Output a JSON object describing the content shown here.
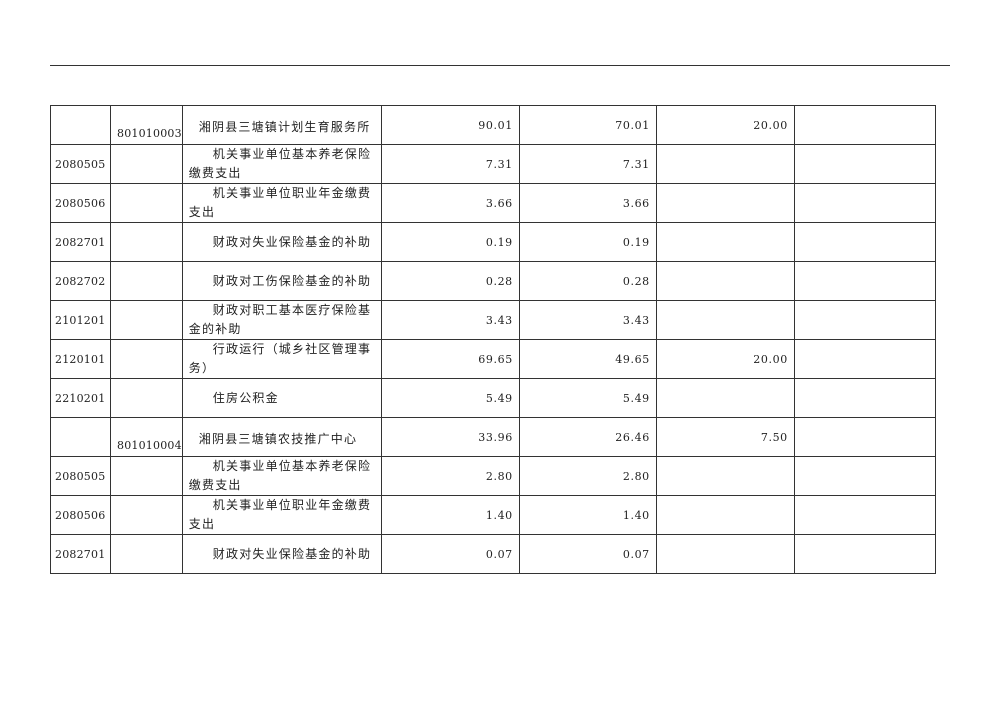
{
  "rows": [
    {
      "code": "",
      "unit": "801010003",
      "name": "湘阴县三塘镇计划生育服务所",
      "total": "90.01",
      "c2": "70.01",
      "c3": "20.00",
      "c4": "",
      "type": "unit"
    },
    {
      "code": "2080505",
      "unit": "",
      "name": "机关事业单位基本养老保险缴费支出",
      "total": "7.31",
      "c2": "7.31",
      "c3": "",
      "c4": "",
      "type": "sub"
    },
    {
      "code": "2080506",
      "unit": "",
      "name": "机关事业单位职业年金缴费支出",
      "total": "3.66",
      "c2": "3.66",
      "c3": "",
      "c4": "",
      "type": "sub"
    },
    {
      "code": "2082701",
      "unit": "",
      "name": "财政对失业保险基金的补助",
      "total": "0.19",
      "c2": "0.19",
      "c3": "",
      "c4": "",
      "type": "sub"
    },
    {
      "code": "2082702",
      "unit": "",
      "name": "财政对工伤保险基金的补助",
      "total": "0.28",
      "c2": "0.28",
      "c3": "",
      "c4": "",
      "type": "sub"
    },
    {
      "code": "2101201",
      "unit": "",
      "name": "财政对职工基本医疗保险基金的补助",
      "total": "3.43",
      "c2": "3.43",
      "c3": "",
      "c4": "",
      "type": "sub"
    },
    {
      "code": "2120101",
      "unit": "",
      "name": "行政运行（城乡社区管理事务）",
      "total": "69.65",
      "c2": "49.65",
      "c3": "20.00",
      "c4": "",
      "type": "sub"
    },
    {
      "code": "2210201",
      "unit": "",
      "name": "住房公积金",
      "total": "5.49",
      "c2": "5.49",
      "c3": "",
      "c4": "",
      "type": "sub"
    },
    {
      "code": "",
      "unit": "801010004",
      "name": "湘阴县三塘镇农技推广中心",
      "total": "33.96",
      "c2": "26.46",
      "c3": "7.50",
      "c4": "",
      "type": "unit"
    },
    {
      "code": "2080505",
      "unit": "",
      "name": "机关事业单位基本养老保险缴费支出",
      "total": "2.80",
      "c2": "2.80",
      "c3": "",
      "c4": "",
      "type": "sub"
    },
    {
      "code": "2080506",
      "unit": "",
      "name": "机关事业单位职业年金缴费支出",
      "total": "1.40",
      "c2": "1.40",
      "c3": "",
      "c4": "",
      "type": "sub"
    },
    {
      "code": "2082701",
      "unit": "",
      "name": "财政对失业保险基金的补助",
      "total": "0.07",
      "c2": "0.07",
      "c3": "",
      "c4": "",
      "type": "sub"
    }
  ]
}
